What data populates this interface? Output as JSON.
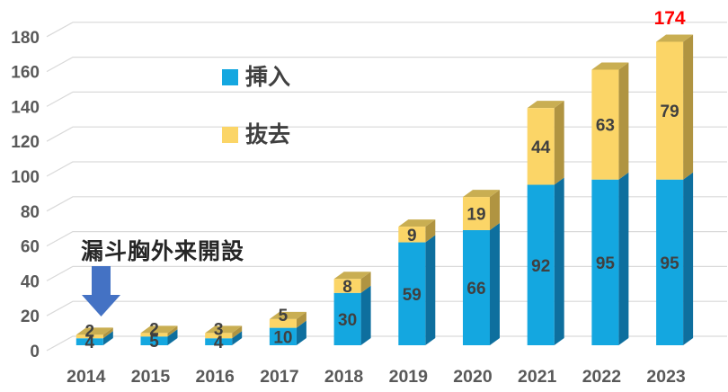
{
  "chart_data": {
    "type": "bar",
    "variant": "3d-stacked-column",
    "categories": [
      "2014",
      "2015",
      "2016",
      "2017",
      "2018",
      "2019",
      "2020",
      "2021",
      "2022",
      "2023"
    ],
    "series": [
      {
        "name": "挿入",
        "color": "#14A7E0",
        "side_color": "#0E6F9E",
        "values": [
          4,
          5,
          4,
          10,
          30,
          59,
          66,
          92,
          95,
          95
        ]
      },
      {
        "name": "抜去",
        "color": "#FBD567",
        "side_color": "#B09441",
        "top_color": "#C9AE52",
        "values": [
          2,
          2,
          3,
          5,
          8,
          9,
          19,
          44,
          63,
          79
        ]
      }
    ],
    "ylim": [
      0,
      180
    ],
    "yticks": [
      0,
      20,
      40,
      60,
      80,
      100,
      120,
      140,
      160,
      180
    ],
    "grid": true,
    "grid_color": "#D9D9D9",
    "legend_position": "upper-center-left",
    "label_color": "#404040",
    "axis_label_color": "#595959",
    "total_annotation": {
      "category": "2023",
      "text": "174",
      "color": "#FF0000"
    },
    "annotation": {
      "text": "漏斗胸外来開設",
      "arrow": "down",
      "arrow_color": "#4472C4",
      "points_to_category": "2014"
    }
  }
}
